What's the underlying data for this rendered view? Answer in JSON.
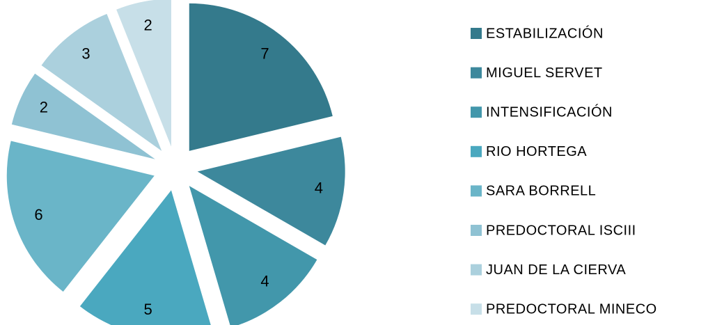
{
  "chart_data": {
    "type": "pie",
    "categories": [
      "ESTABILIZACIÓN",
      "MIGUEL SERVET",
      "INTENSIFICACIÓN",
      "RIO HORTEGA",
      "SARA BORRELL",
      "PREDOCTORAL ISCIII",
      "JUAN DE LA CIERVA",
      "PREDOCTORAL MINECO"
    ],
    "values": [
      7,
      4,
      4,
      5,
      6,
      2,
      3,
      2
    ],
    "colors": [
      "#347a8c",
      "#3d889c",
      "#4297ab",
      "#4aa8bf",
      "#6ab5c8",
      "#8fc2d3",
      "#abd0dd",
      "#c7dfe8"
    ],
    "legend": "right"
  }
}
